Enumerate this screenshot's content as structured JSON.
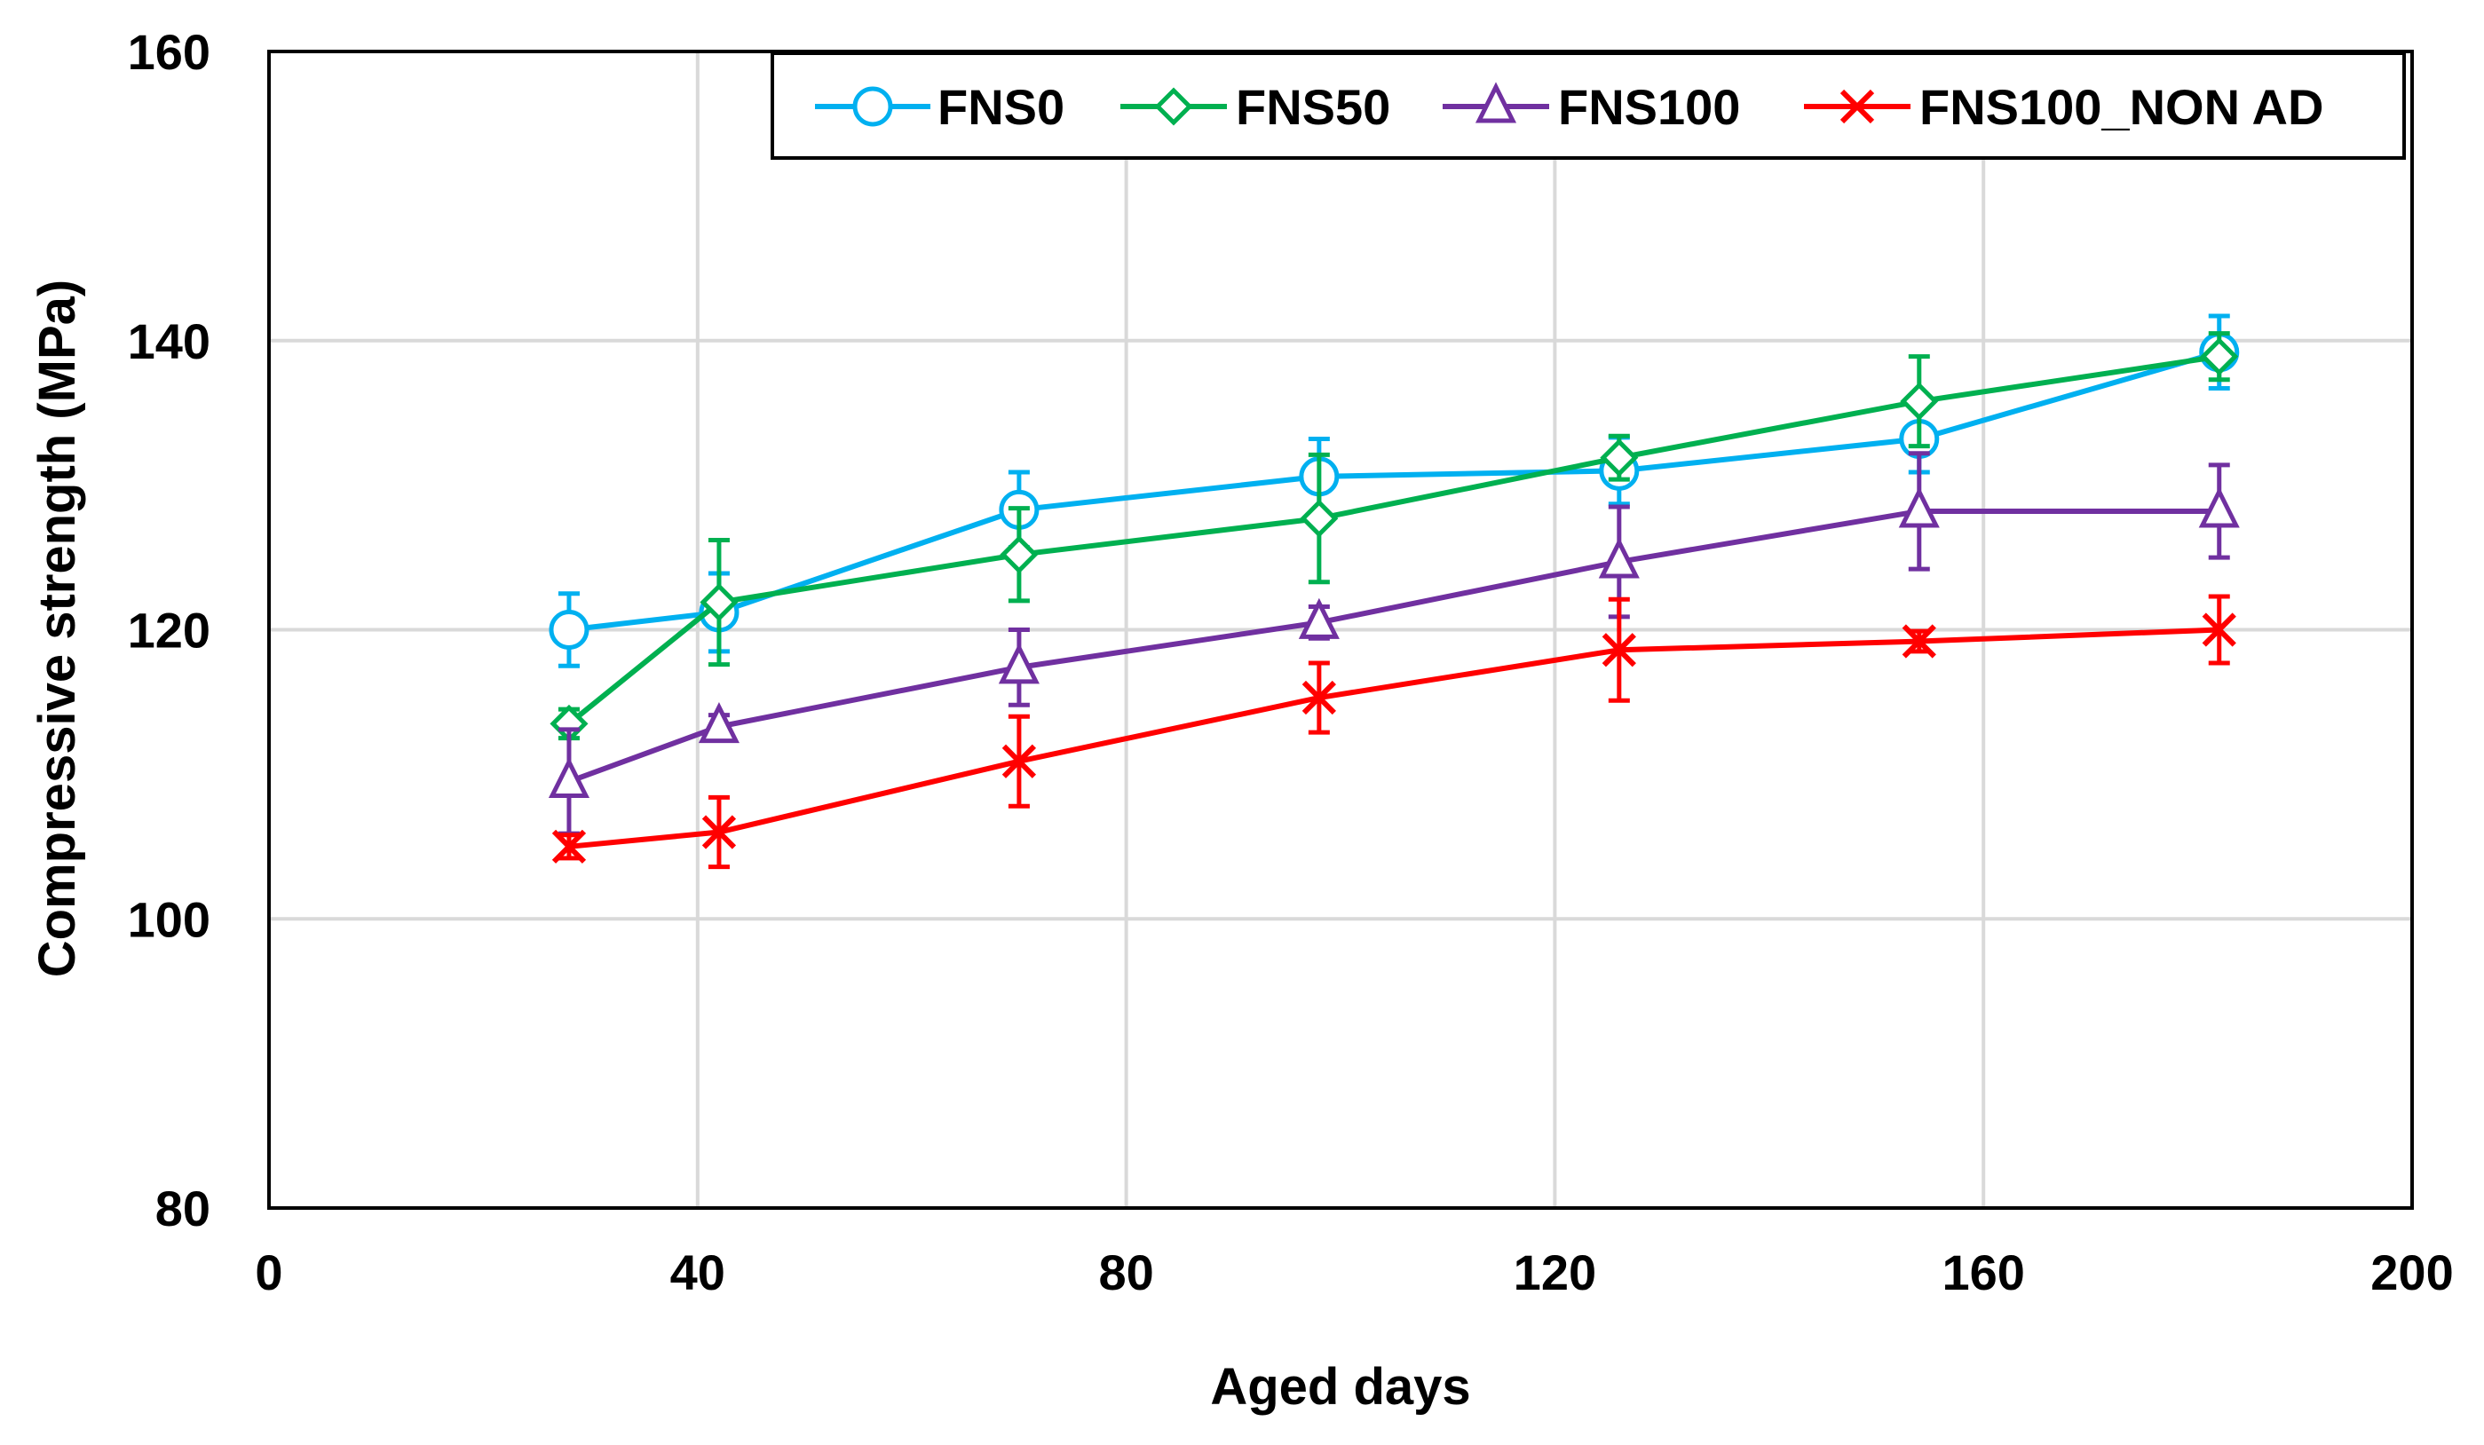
{
  "chart_data": {
    "type": "line",
    "title": "",
    "xlabel": "Aged days",
    "ylabel": "Compressive strength (MPa)",
    "xlim": [
      0,
      200
    ],
    "ylim": [
      80,
      160
    ],
    "xticks": [
      0,
      40,
      80,
      120,
      160,
      200
    ],
    "yticks": [
      80,
      100,
      120,
      140,
      160
    ],
    "xtick_labels": [
      "0",
      "40",
      "80",
      "120",
      "160",
      "200"
    ],
    "ytick_labels": [
      "80",
      "100",
      "120",
      "140",
      "160"
    ],
    "grid": true,
    "legend_position": "top-right",
    "series": [
      {
        "name": "FNS0",
        "color": "#00b0f0",
        "marker": "circle",
        "x": [
          28,
          42,
          70,
          98,
          126,
          154,
          182
        ],
        "values": [
          120.0,
          121.2,
          128.3,
          130.6,
          131.0,
          133.2,
          139.2
        ],
        "errors": [
          2.5,
          2.7,
          2.6,
          2.6,
          2.3,
          2.3,
          2.5
        ]
      },
      {
        "name": "FNS50",
        "color": "#00b050",
        "marker": "diamond",
        "x": [
          28,
          42,
          70,
          98,
          126,
          154,
          182
        ],
        "values": [
          113.5,
          121.9,
          125.2,
          127.7,
          131.9,
          135.8,
          138.9
        ],
        "errors": [
          1.0,
          4.3,
          3.2,
          4.4,
          1.5,
          3.1,
          1.6
        ]
      },
      {
        "name": "FNS100",
        "color": "#7030a0",
        "marker": "triangle",
        "x": [
          28,
          42,
          70,
          98,
          126,
          154,
          182
        ],
        "values": [
          109.5,
          113.3,
          117.4,
          120.5,
          124.7,
          128.2,
          128.2
        ],
        "errors": [
          3.6,
          0.8,
          2.6,
          1.1,
          3.8,
          4.0,
          3.2
        ]
      },
      {
        "name": "FNS100_NON AD",
        "color": "#ff0000",
        "marker": "x",
        "x": [
          28,
          42,
          70,
          98,
          126,
          154,
          182
        ],
        "values": [
          105.0,
          106.0,
          110.9,
          115.3,
          118.6,
          119.2,
          120.0
        ],
        "errors": [
          0.8,
          2.4,
          3.1,
          2.4,
          3.5,
          0.7,
          2.3
        ]
      }
    ]
  }
}
